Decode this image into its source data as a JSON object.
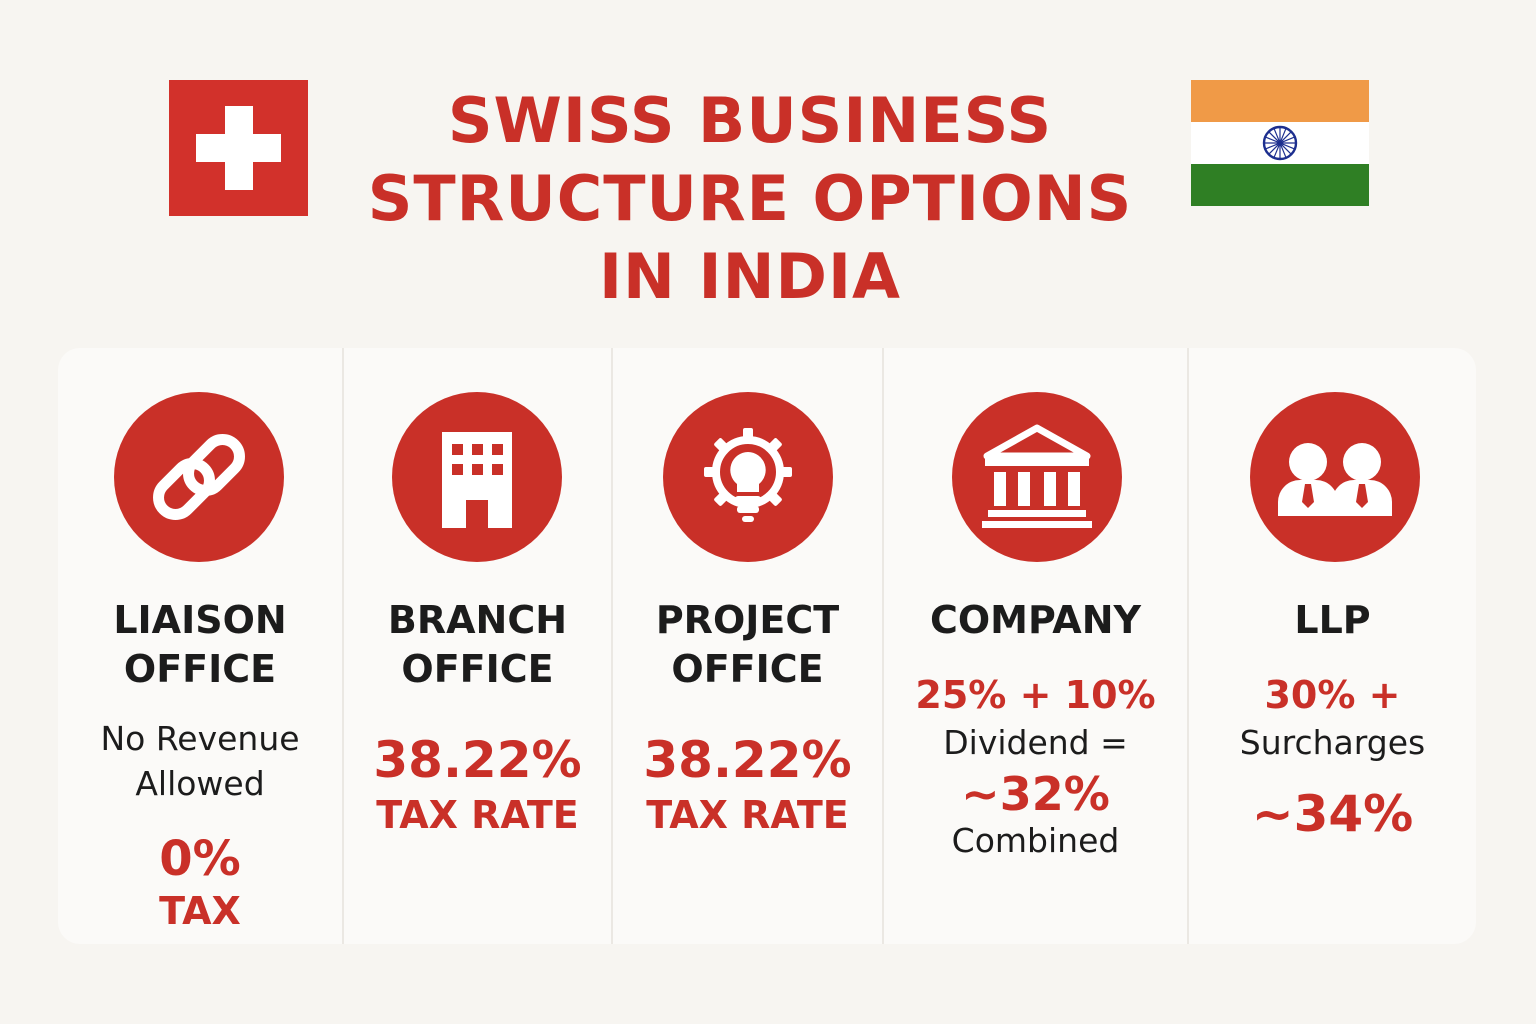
{
  "header": {
    "title_lines": [
      "SWISS BUSINESS",
      "STRUCTURE OPTIONS",
      "IN INDIA"
    ],
    "left_flag": "swiss-flag",
    "right_flag": "india-flag"
  },
  "colors": {
    "accent": "#c93028",
    "background": "#f7f5f1",
    "saffron": "#f09a47",
    "green": "#2f7f24",
    "chakra": "#1d2f8f"
  },
  "options": [
    {
      "icon": "chain-link-icon",
      "name": "LIAISON\nOFFICE",
      "note": "No Revenue\nAllowed",
      "value": "0%",
      "value_label": "TAX"
    },
    {
      "icon": "building-icon",
      "name": "BRANCH\nOFFICE",
      "value": "38.22%",
      "value_label": "TAX RATE"
    },
    {
      "icon": "lightbulb-gear-icon",
      "name": "PROJECT\nOFFICE",
      "value": "38.22%",
      "value_label": "TAX RATE"
    },
    {
      "icon": "bank-icon",
      "name": "COMPANY",
      "rate_line": "25% + 10%",
      "note_1": "Dividend =",
      "value": "~32%",
      "note_2": "Combined"
    },
    {
      "icon": "people-icon",
      "name": "LLP",
      "rate_line": "30% +",
      "note_1": "Surcharges",
      "value": "~34%"
    }
  ]
}
